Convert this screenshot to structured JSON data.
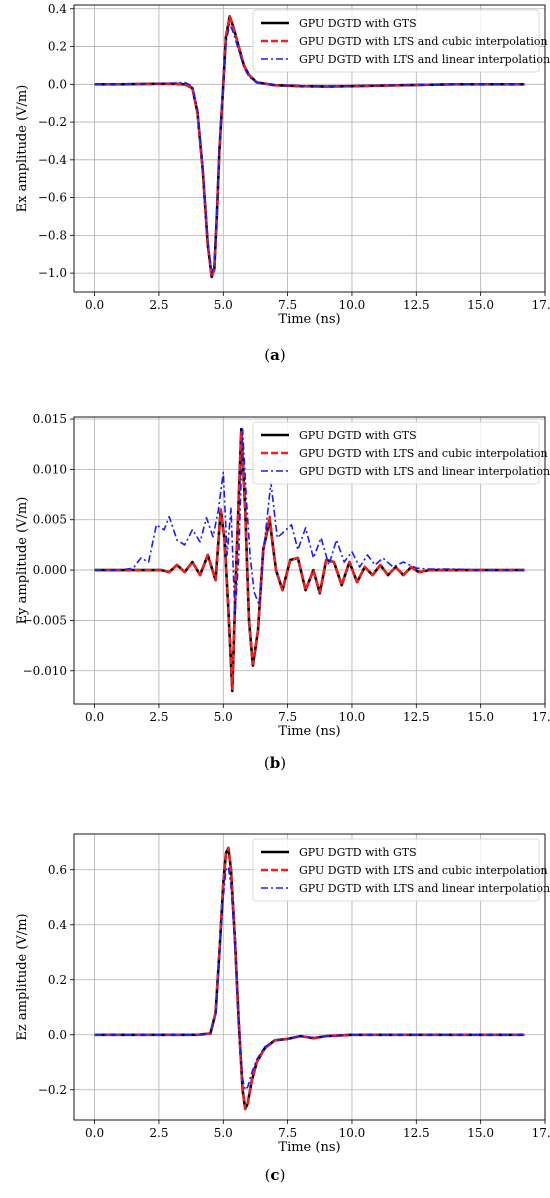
{
  "chart_data": [
    {
      "type": "line",
      "panel_label": "a",
      "xlabel": "Time (ns)",
      "ylabel": "Ex amplitude (V/m)",
      "xlim": [
        -0.8,
        17.5
      ],
      "ylim": [
        -1.1,
        0.42
      ],
      "xticks": [
        0.0,
        2.5,
        5.0,
        7.5,
        10.0,
        12.5,
        15.0,
        17.5
      ],
      "xtick_labels": [
        "0.0",
        "2.5",
        "5.0",
        "7.5",
        "10.0",
        "12.5",
        "15.0",
        "17.5"
      ],
      "yticks": [
        -1.0,
        -0.8,
        -0.6,
        -0.4,
        -0.2,
        0.0,
        0.2,
        0.4
      ],
      "ytick_labels": [
        "−1.0",
        "−0.8",
        "−0.6",
        "−0.4",
        "−0.2",
        "0.0",
        "0.2",
        "0.4"
      ],
      "grid": true,
      "legend_position": "top-right",
      "series": [
        {
          "name": "GPU DGTD with GTS",
          "color": "#000000",
          "style": "solid",
          "x": [
            0,
            1,
            2,
            3,
            3.5,
            3.8,
            4.0,
            4.2,
            4.4,
            4.55,
            4.65,
            4.75,
            4.85,
            5.0,
            5.1,
            5.25,
            5.4,
            5.6,
            5.8,
            6.0,
            6.3,
            7.0,
            8.0,
            9.0,
            10.0,
            12.0,
            14.0,
            16.7
          ],
          "y": [
            0,
            0,
            0.002,
            0.003,
            0.0,
            -0.02,
            -0.15,
            -0.45,
            -0.85,
            -1.02,
            -0.98,
            -0.7,
            -0.35,
            0.0,
            0.25,
            0.36,
            0.3,
            0.2,
            0.1,
            0.05,
            0.01,
            -0.005,
            -0.01,
            -0.012,
            -0.01,
            -0.005,
            0.0,
            0.0
          ]
        },
        {
          "name": "GPU DGTD with LTS and cubic interpolation",
          "color": "#ff1a1a",
          "style": "dashed",
          "x": [
            0,
            1,
            2,
            3,
            3.5,
            3.8,
            4.0,
            4.2,
            4.4,
            4.55,
            4.65,
            4.75,
            4.85,
            5.0,
            5.1,
            5.25,
            5.4,
            5.6,
            5.8,
            6.0,
            6.3,
            7.0,
            8.0,
            9.0,
            10.0,
            12.0,
            14.0,
            16.7
          ],
          "y": [
            0,
            0,
            0.002,
            0.003,
            0.0,
            -0.02,
            -0.15,
            -0.45,
            -0.85,
            -1.02,
            -0.98,
            -0.7,
            -0.35,
            0.0,
            0.25,
            0.36,
            0.3,
            0.2,
            0.1,
            0.05,
            0.01,
            -0.005,
            -0.01,
            -0.012,
            -0.01,
            -0.005,
            0.0,
            0.0
          ]
        },
        {
          "name": "GPU DGTD with LTS and linear interpolation",
          "color": "#1a1aff",
          "style": "dashdot",
          "x": [
            0,
            1,
            2,
            3,
            3.5,
            3.8,
            4.0,
            4.2,
            4.4,
            4.55,
            4.65,
            4.75,
            4.85,
            5.0,
            5.1,
            5.25,
            5.4,
            5.6,
            5.8,
            6.0,
            6.3,
            7.0,
            8.0,
            9.0,
            10.0,
            12.0,
            14.0,
            16.7
          ],
          "y": [
            0,
            0,
            0.003,
            0.006,
            0.01,
            -0.01,
            -0.13,
            -0.43,
            -0.83,
            -1.0,
            -0.96,
            -0.68,
            -0.33,
            0.0,
            0.22,
            0.32,
            0.27,
            0.18,
            0.09,
            0.04,
            0.01,
            -0.005,
            -0.008,
            -0.01,
            -0.008,
            -0.004,
            0.0,
            0.0
          ]
        }
      ]
    },
    {
      "type": "line",
      "panel_label": "b",
      "xlabel": "Time (ns)",
      "ylabel": "Ey amplitude (V/m)",
      "xlim": [
        -0.8,
        17.5
      ],
      "ylim": [
        -0.0133,
        0.0152
      ],
      "xticks": [
        0.0,
        2.5,
        5.0,
        7.5,
        10.0,
        12.5,
        15.0,
        17.5
      ],
      "xtick_labels": [
        "0.0",
        "2.5",
        "5.0",
        "7.5",
        "10.0",
        "12.5",
        "15.0",
        "17.5"
      ],
      "yticks": [
        -0.01,
        -0.005,
        0.0,
        0.005,
        0.01,
        0.015
      ],
      "ytick_labels": [
        "−0.010",
        "−0.005",
        "0.000",
        "0.005",
        "0.010",
        "0.015"
      ],
      "grid": true,
      "legend_position": "top-right",
      "series": [
        {
          "name": "GPU DGTD with GTS",
          "color": "#000000",
          "style": "solid",
          "x": [
            0,
            1,
            2,
            2.6,
            2.9,
            3.2,
            3.5,
            3.8,
            4.1,
            4.4,
            4.7,
            4.9,
            5.05,
            5.2,
            5.35,
            5.5,
            5.7,
            5.85,
            6.0,
            6.15,
            6.35,
            6.55,
            6.8,
            7.05,
            7.3,
            7.6,
            7.9,
            8.2,
            8.5,
            8.75,
            9.0,
            9.3,
            9.6,
            9.9,
            10.2,
            10.5,
            10.8,
            11.1,
            11.4,
            11.7,
            12.0,
            12.3,
            12.6,
            13.0,
            14.0,
            15.0,
            16.7
          ],
          "y": [
            0,
            0,
            0,
            0,
            -0.0002,
            0.0005,
            -0.0002,
            0.0008,
            -0.0005,
            0.0015,
            -0.001,
            0.006,
            0.003,
            -0.004,
            -0.012,
            0.0,
            0.014,
            0.006,
            -0.005,
            -0.0095,
            -0.006,
            0.002,
            0.005,
            0.0,
            -0.002,
            0.001,
            0.0012,
            -0.002,
            0.0,
            -0.0023,
            0.001,
            0.0008,
            -0.0015,
            0.0008,
            -0.0012,
            0.0003,
            -0.0005,
            0.0005,
            -0.0005,
            0.0003,
            -0.0005,
            0.0003,
            -0.0002,
            0.0,
            0.0,
            0.0,
            0.0
          ]
        },
        {
          "name": "GPU DGTD with LTS and cubic interpolation",
          "color": "#ff1a1a",
          "style": "dashed",
          "x": [
            0,
            1,
            2,
            2.6,
            2.9,
            3.2,
            3.5,
            3.8,
            4.1,
            4.4,
            4.7,
            4.9,
            5.05,
            5.2,
            5.35,
            5.5,
            5.7,
            5.85,
            6.0,
            6.15,
            6.35,
            6.55,
            6.8,
            7.05,
            7.3,
            7.6,
            7.9,
            8.2,
            8.5,
            8.75,
            9.0,
            9.3,
            9.6,
            9.9,
            10.2,
            10.5,
            10.8,
            11.1,
            11.4,
            11.7,
            12.0,
            12.3,
            12.6,
            13.0,
            14.0,
            15.0,
            16.7
          ],
          "y": [
            0,
            0,
            0,
            0,
            -0.0002,
            0.0005,
            -0.0002,
            0.0008,
            -0.0005,
            0.0015,
            -0.001,
            0.006,
            0.003,
            -0.004,
            -0.0118,
            0.0,
            0.0138,
            0.006,
            -0.005,
            -0.0093,
            -0.006,
            0.002,
            0.0053,
            0.0,
            -0.002,
            0.001,
            0.0012,
            -0.002,
            0.0,
            -0.0022,
            0.001,
            0.0008,
            -0.0015,
            0.0008,
            -0.0012,
            0.0003,
            -0.0005,
            0.0005,
            -0.0005,
            0.0003,
            -0.0005,
            0.0003,
            -0.0002,
            0.0,
            0.0,
            0.0,
            0.0
          ]
        },
        {
          "name": "GPU DGTD with LTS and linear interpolation",
          "color": "#1a1aff",
          "style": "dashdot",
          "x": [
            0,
            1.0,
            1.5,
            1.8,
            2.1,
            2.4,
            2.7,
            2.9,
            3.2,
            3.5,
            3.8,
            4.1,
            4.35,
            4.6,
            4.8,
            5.0,
            5.15,
            5.3,
            5.45,
            5.6,
            5.75,
            5.9,
            6.05,
            6.2,
            6.4,
            6.6,
            6.85,
            7.1,
            7.35,
            7.65,
            7.9,
            8.2,
            8.5,
            8.8,
            9.1,
            9.4,
            9.7,
            10.0,
            10.3,
            10.6,
            10.9,
            11.2,
            11.6,
            12.0,
            12.5,
            13.0,
            14.0,
            15.0,
            16.7
          ],
          "y": [
            0,
            0,
            0.0002,
            0.0012,
            0.0008,
            0.0045,
            0.004,
            0.0053,
            0.003,
            0.0025,
            0.004,
            0.0028,
            0.0052,
            0.0033,
            0.0058,
            0.0097,
            0.0015,
            0.0062,
            -0.0045,
            0.0012,
            0.014,
            0.007,
            0.0012,
            -0.0022,
            -0.0035,
            0.0028,
            0.0087,
            0.0032,
            0.0038,
            0.0045,
            0.002,
            0.0042,
            0.0012,
            0.0032,
            0.0005,
            0.003,
            0.0008,
            0.0018,
            0.0003,
            0.0015,
            0.0005,
            0.0012,
            0.0003,
            0.0008,
            0.0002,
            0.0001,
            0.0001,
            0.0,
            0.0
          ]
        }
      ]
    },
    {
      "type": "line",
      "panel_label": "c",
      "xlabel": "Time (ns)",
      "ylabel": "Ez amplitude (V/m)",
      "xlim": [
        -0.8,
        17.5
      ],
      "ylim": [
        -0.31,
        0.73
      ],
      "xticks": [
        0.0,
        2.5,
        5.0,
        7.5,
        10.0,
        12.5,
        15.0,
        17.5
      ],
      "xtick_labels": [
        "0.0",
        "2.5",
        "5.0",
        "7.5",
        "10.0",
        "12.5",
        "15.0",
        "17.5"
      ],
      "yticks": [
        -0.2,
        0.0,
        0.2,
        0.4,
        0.6
      ],
      "ytick_labels": [
        "−0.2",
        "0.0",
        "0.2",
        "0.4",
        "0.6"
      ],
      "grid": true,
      "legend_position": "top-right",
      "series": [
        {
          "name": "GPU DGTD with GTS",
          "color": "#000000",
          "style": "solid",
          "x": [
            0,
            2,
            4.0,
            4.5,
            4.7,
            4.85,
            5.0,
            5.1,
            5.2,
            5.3,
            5.45,
            5.6,
            5.75,
            5.85,
            5.95,
            6.1,
            6.3,
            6.6,
            7.0,
            7.5,
            8.0,
            8.5,
            9.0,
            10.0,
            12.0,
            14.0,
            16.7
          ],
          "y": [
            0,
            0.0,
            0.0,
            0.005,
            0.08,
            0.3,
            0.55,
            0.66,
            0.68,
            0.6,
            0.35,
            0.05,
            -0.2,
            -0.27,
            -0.25,
            -0.17,
            -0.1,
            -0.05,
            -0.02,
            -0.015,
            -0.005,
            -0.012,
            -0.005,
            0.0,
            0.0,
            0.0,
            0.0
          ]
        },
        {
          "name": "GPU DGTD with LTS and cubic interpolation",
          "color": "#ff1a1a",
          "style": "dashed",
          "x": [
            0,
            2,
            4.0,
            4.5,
            4.7,
            4.85,
            5.0,
            5.1,
            5.2,
            5.3,
            5.45,
            5.6,
            5.75,
            5.85,
            5.95,
            6.1,
            6.3,
            6.6,
            7.0,
            7.5,
            8.0,
            8.5,
            9.0,
            10.0,
            12.0,
            14.0,
            16.7
          ],
          "y": [
            0,
            0.0,
            0.0,
            0.005,
            0.08,
            0.3,
            0.55,
            0.66,
            0.68,
            0.6,
            0.35,
            0.05,
            -0.2,
            -0.27,
            -0.25,
            -0.17,
            -0.1,
            -0.05,
            -0.02,
            -0.015,
            -0.005,
            -0.012,
            -0.005,
            0.0,
            0.0,
            0.0,
            0.0
          ]
        },
        {
          "name": "GPU DGTD with LTS and linear interpolation",
          "color": "#1a1aff",
          "style": "dashdot",
          "x": [
            0,
            2,
            4.0,
            4.5,
            4.7,
            4.85,
            5.0,
            5.1,
            5.2,
            5.3,
            5.45,
            5.6,
            5.75,
            5.85,
            5.95,
            6.1,
            6.3,
            6.6,
            7.0,
            7.5,
            8.0,
            8.5,
            9.0,
            10.0,
            12.0,
            14.0,
            16.7
          ],
          "y": [
            0,
            0.0,
            0.0,
            0.005,
            0.07,
            0.28,
            0.5,
            0.6,
            0.61,
            0.54,
            0.32,
            0.04,
            -0.16,
            -0.2,
            -0.19,
            -0.14,
            -0.09,
            -0.045,
            -0.02,
            -0.015,
            -0.005,
            -0.01,
            -0.005,
            0.0,
            0.0,
            0.0,
            0.0
          ]
        }
      ]
    }
  ],
  "captions": [
    "a",
    "b",
    "c"
  ]
}
